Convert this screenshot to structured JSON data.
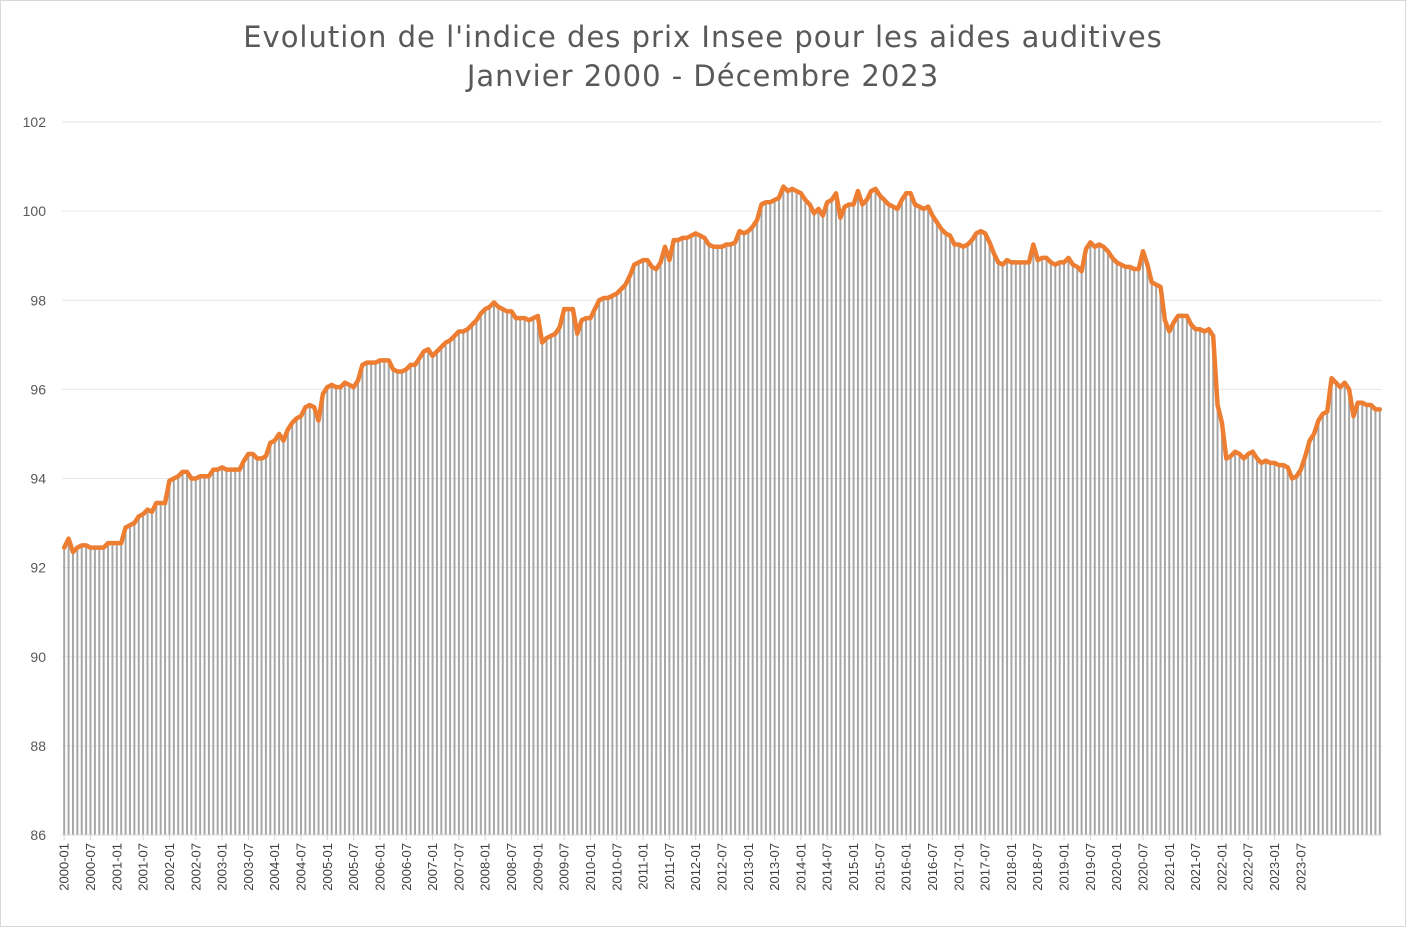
{
  "chart_data": {
    "type": "bar",
    "title": "Evolution de l'indice des prix Insee pour les aides auditives",
    "subtitle": "Janvier 2000 - Décembre 2023",
    "ylim": [
      86,
      102
    ],
    "yticks": [
      86,
      88,
      90,
      92,
      94,
      96,
      98,
      100,
      102
    ],
    "grid": true,
    "x_tick_labels": [
      "2000-01",
      "2000-07",
      "2001-01",
      "2001-07",
      "2002-01",
      "2002-07",
      "2003-01",
      "2003-07",
      "2004-01",
      "2004-07",
      "2005-01",
      "2005-07",
      "2006-01",
      "2006-07",
      "2007-01",
      "2007-07",
      "2008-01",
      "2008-07",
      "2009-01",
      "2009-07",
      "2010-01",
      "2010-07",
      "2011-01",
      "2011-07",
      "2012-01",
      "2012-07",
      "2013-01",
      "2013-07",
      "2014-01",
      "2014-07",
      "2015-01",
      "2015-07",
      "2016-01",
      "2016-07",
      "2017-01",
      "2017-07",
      "2018-01",
      "2018-07",
      "2019-01",
      "2019-07",
      "2020-01",
      "2020-07",
      "2021-01",
      "2021-07",
      "2022-01",
      "2022-07",
      "2023-01",
      "2023-07"
    ],
    "series": [
      {
        "type": "bar",
        "color": "#a6a6a6",
        "start": "2000-01",
        "values": [
          92.45,
          92.65,
          92.35,
          92.45,
          92.5,
          92.5,
          92.45,
          92.45,
          92.45,
          92.45,
          92.55,
          92.55,
          92.55,
          92.55,
          92.9,
          92.95,
          93.0,
          93.15,
          93.2,
          93.3,
          93.25,
          93.45,
          93.45,
          93.45,
          93.95,
          94.0,
          94.05,
          94.15,
          94.15,
          94.0,
          94.0,
          94.05,
          94.05,
          94.05,
          94.2,
          94.2,
          94.25,
          94.2,
          94.2,
          94.2,
          94.2,
          94.4,
          94.55,
          94.55,
          94.45,
          94.45,
          94.5,
          94.8,
          94.85,
          95.0,
          94.85,
          95.1,
          95.25,
          95.35,
          95.4,
          95.6,
          95.65,
          95.6,
          95.3,
          95.9,
          96.05,
          96.1,
          96.05,
          96.05,
          96.15,
          96.1,
          96.05,
          96.2,
          96.55,
          96.6,
          96.6,
          96.6,
          96.65,
          96.65,
          96.65,
          96.45,
          96.4,
          96.4,
          96.45,
          96.55,
          96.55,
          96.7,
          96.85,
          96.9,
          96.75,
          96.85,
          96.95,
          97.05,
          97.1,
          97.2,
          97.3,
          97.3,
          97.35,
          97.45,
          97.55,
          97.7,
          97.8,
          97.85,
          97.95,
          97.85,
          97.8,
          97.75,
          97.75,
          97.6,
          97.6,
          97.6,
          97.55,
          97.6,
          97.65,
          97.05,
          97.15,
          97.2,
          97.25,
          97.4,
          97.8,
          97.8,
          97.8,
          97.25,
          97.55,
          97.6,
          97.6,
          97.8,
          98.0,
          98.05,
          98.05,
          98.1,
          98.15,
          98.25,
          98.35,
          98.55,
          98.8,
          98.85,
          98.9,
          98.9,
          98.75,
          98.7,
          98.85,
          99.2,
          98.9,
          99.35,
          99.35,
          99.4,
          99.4,
          99.45,
          99.5,
          99.45,
          99.4,
          99.25,
          99.2,
          99.2,
          99.2,
          99.25,
          99.25,
          99.3,
          99.55,
          99.5,
          99.55,
          99.65,
          99.8,
          100.15,
          100.2,
          100.2,
          100.25,
          100.3,
          100.55,
          100.45,
          100.5,
          100.45,
          100.4,
          100.25,
          100.15,
          99.95,
          100.05,
          99.9,
          100.2,
          100.25,
          100.4,
          99.85,
          100.1,
          100.15,
          100.15,
          100.45,
          100.15,
          100.25,
          100.45,
          100.5,
          100.35,
          100.25,
          100.15,
          100.1,
          100.05,
          100.25,
          100.4,
          100.4,
          100.15,
          100.1,
          100.05,
          100.1,
          99.9,
          99.75,
          99.6,
          99.5,
          99.45,
          99.25,
          99.25,
          99.2,
          99.25,
          99.35,
          99.5,
          99.55,
          99.5,
          99.3,
          99.05,
          98.85,
          98.8,
          98.9,
          98.85,
          98.85,
          98.85,
          98.85,
          98.85,
          99.25,
          98.9,
          98.95,
          98.95,
          98.85,
          98.8,
          98.85,
          98.85,
          98.95,
          98.8,
          98.75,
          98.65,
          99.15,
          99.3,
          99.2,
          99.25,
          99.2,
          99.1,
          98.95,
          98.85,
          98.8,
          98.75,
          98.75,
          98.7,
          98.7,
          99.1,
          98.8,
          98.4,
          98.35,
          98.3,
          97.55,
          97.3,
          97.5,
          97.65,
          97.65,
          97.65,
          97.45,
          97.35,
          97.35,
          97.3,
          97.35,
          97.2,
          95.65,
          95.25,
          94.45,
          94.5,
          94.6,
          94.55,
          94.45,
          94.55,
          94.6,
          94.45,
          94.35,
          94.4,
          94.35,
          94.35,
          94.3,
          94.3,
          94.25,
          94.0,
          94.05,
          94.2,
          94.5,
          94.85,
          95.0,
          95.3,
          95.45,
          95.5,
          96.25,
          96.15,
          96.05,
          96.15,
          96.0,
          95.4,
          95.7,
          95.7,
          95.65,
          95.65,
          95.55,
          95.55
        ]
      },
      {
        "type": "line",
        "color": "#ed7d31",
        "same_values_as_bars": true
      }
    ]
  }
}
